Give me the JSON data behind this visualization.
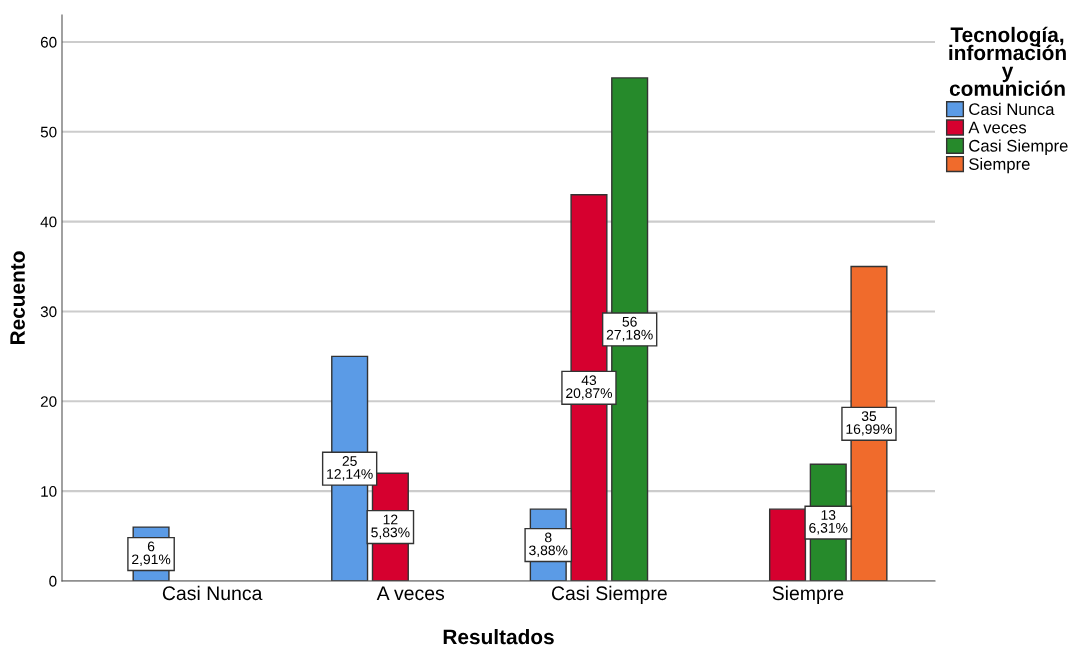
{
  "chart_data": {
    "type": "bar",
    "xlabel": "Resultados",
    "ylabel": "Recuento",
    "legend_title": "Tecnología, información y comunición",
    "categories": [
      "Casi Nunca",
      "A veces",
      "Casi Siempre",
      "Siempre"
    ],
    "series": [
      {
        "name": "Casi Nunca",
        "color": "#5b9be6",
        "values": [
          6,
          25,
          8,
          null
        ],
        "value_labels": [
          "6\n2,91%",
          "25\n12,14%",
          "8\n3,88%",
          null
        ]
      },
      {
        "name": "A veces",
        "color": "#d6002f",
        "values": [
          null,
          12,
          43,
          8
        ],
        "value_labels": [
          null,
          "12\n5,83%",
          "43\n20,87%",
          null
        ]
      },
      {
        "name": "Casi Siempre",
        "color": "#268a2b",
        "values": [
          null,
          null,
          56,
          13
        ],
        "value_labels": [
          null,
          null,
          "56\n27,18%",
          "13\n6,31%"
        ]
      },
      {
        "name": "Siempre",
        "color": "#f06b2c",
        "values": [
          null,
          null,
          null,
          35
        ],
        "value_labels": [
          null,
          null,
          null,
          "35\n16,99%"
        ]
      }
    ],
    "ylim": [
      0,
      63
    ],
    "yticks": [
      0,
      10,
      20,
      30,
      40,
      50,
      60
    ],
    "grid": "y",
    "legend": "right"
  }
}
